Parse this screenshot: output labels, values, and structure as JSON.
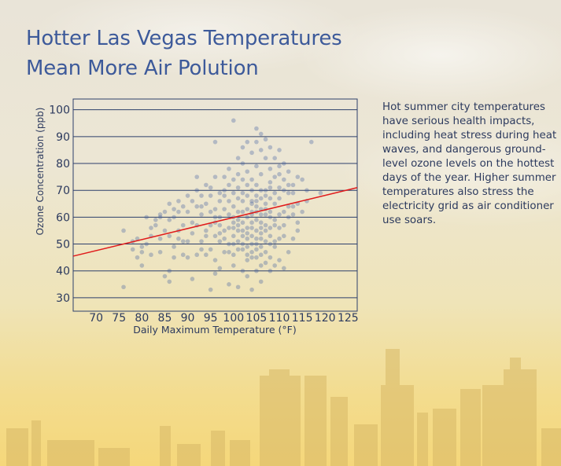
{
  "title_lines": [
    "Hotter Las Vegas Temperatures",
    "Mean More Air Polution"
  ],
  "description": "Hot summer city temperatures have serious health impacts, including heat stress during heat waves, and dangerous ground-level ozone levels on the hottest days of the year. Higher summer temperatures also stress the electricity grid as air conditioner use soars.",
  "colors": {
    "title": "#3d5a9a",
    "points": "#3a5a9e",
    "trend_line": "#e01b1b",
    "grid": "#2d3f6b",
    "skyline": "#d8b967"
  },
  "chart_data": {
    "type": "scatter",
    "xlabel": "Daily Maximum Temperature (°F)",
    "ylabel": "Ozone Concentration (ppb)",
    "xlim": [
      65,
      127
    ],
    "ylim": [
      25,
      104
    ],
    "x_ticks": [
      70,
      75,
      80,
      85,
      90,
      95,
      100,
      105,
      110,
      115,
      120,
      125
    ],
    "y_ticks": [
      30,
      40,
      50,
      60,
      70,
      80,
      90,
      100
    ],
    "grid": "horizontal",
    "trend_line": {
      "x": [
        65,
        127
      ],
      "y": [
        45.5,
        71
      ]
    },
    "points": [
      [
        76,
        34
      ],
      [
        78,
        48
      ],
      [
        79,
        45
      ],
      [
        80,
        42
      ],
      [
        82,
        46
      ],
      [
        84,
        47
      ],
      [
        84,
        52
      ],
      [
        85,
        38
      ],
      [
        86,
        40
      ],
      [
        86,
        36
      ],
      [
        87,
        45
      ],
      [
        88,
        55
      ],
      [
        89,
        46
      ],
      [
        90,
        51
      ],
      [
        91,
        37
      ],
      [
        92,
        57
      ],
      [
        93,
        48
      ],
      [
        94,
        53
      ],
      [
        95,
        33
      ],
      [
        96,
        58
      ],
      [
        76,
        55
      ],
      [
        79,
        52
      ],
      [
        81,
        60
      ],
      [
        83,
        59
      ],
      [
        84,
        61
      ],
      [
        86,
        53
      ],
      [
        87,
        60
      ],
      [
        88,
        62
      ],
      [
        89,
        51
      ],
      [
        90,
        62
      ],
      [
        91,
        58
      ],
      [
        92,
        64
      ],
      [
        93,
        61
      ],
      [
        94,
        55
      ],
      [
        95,
        57
      ],
      [
        96,
        53
      ],
      [
        97,
        60
      ],
      [
        98,
        55
      ],
      [
        99,
        56
      ],
      [
        100,
        58
      ],
      [
        80,
        49
      ],
      [
        82,
        56
      ],
      [
        85,
        55
      ],
      [
        86,
        59
      ],
      [
        87,
        49
      ],
      [
        88,
        52
      ],
      [
        89,
        57
      ],
      [
        90,
        45
      ],
      [
        91,
        54
      ],
      [
        92,
        46
      ],
      [
        93,
        51
      ],
      [
        94,
        46
      ],
      [
        95,
        48
      ],
      [
        96,
        44
      ],
      [
        97,
        51
      ],
      [
        98,
        47
      ],
      [
        99,
        50
      ],
      [
        100,
        46
      ],
      [
        101,
        51
      ],
      [
        102,
        53
      ],
      [
        94,
        65
      ],
      [
        95,
        68
      ],
      [
        96,
        63
      ],
      [
        97,
        66
      ],
      [
        98,
        70
      ],
      [
        99,
        72
      ],
      [
        100,
        64
      ],
      [
        101,
        67
      ],
      [
        102,
        69
      ],
      [
        103,
        72
      ],
      [
        104,
        66
      ],
      [
        105,
        68
      ],
      [
        106,
        63
      ],
      [
        107,
        70
      ],
      [
        108,
        73
      ],
      [
        109,
        65
      ],
      [
        110,
        67
      ],
      [
        111,
        62
      ],
      [
        112,
        60
      ],
      [
        113,
        64
      ],
      [
        95,
        62
      ],
      [
        96,
        60
      ],
      [
        97,
        57
      ],
      [
        98,
        63
      ],
      [
        99,
        61
      ],
      [
        100,
        60
      ],
      [
        101,
        62
      ],
      [
        102,
        58
      ],
      [
        103,
        60
      ],
      [
        104,
        62
      ],
      [
        105,
        64
      ],
      [
        106,
        58
      ],
      [
        107,
        61
      ],
      [
        108,
        62
      ],
      [
        109,
        59
      ],
      [
        110,
        61
      ],
      [
        111,
        57
      ],
      [
        112,
        64
      ],
      [
        113,
        61
      ],
      [
        114,
        58
      ],
      [
        97,
        54
      ],
      [
        98,
        52
      ],
      [
        99,
        47
      ],
      [
        100,
        53
      ],
      [
        101,
        55
      ],
      [
        102,
        48
      ],
      [
        103,
        54
      ],
      [
        104,
        50
      ],
      [
        105,
        55
      ],
      [
        106,
        52
      ],
      [
        107,
        51
      ],
      [
        108,
        53
      ],
      [
        109,
        49
      ],
      [
        110,
        52
      ],
      [
        111,
        53
      ],
      [
        112,
        47
      ],
      [
        113,
        52
      ],
      [
        114,
        55
      ],
      [
        100,
        42
      ],
      [
        103,
        44
      ],
      [
        104,
        45
      ],
      [
        105,
        40
      ],
      [
        106,
        46
      ],
      [
        107,
        43
      ],
      [
        108,
        45
      ],
      [
        109,
        42
      ],
      [
        110,
        44
      ],
      [
        111,
        41
      ],
      [
        103,
        38
      ],
      [
        106,
        36
      ],
      [
        101,
        34
      ],
      [
        104,
        33
      ],
      [
        99,
        35
      ],
      [
        102,
        40
      ],
      [
        105,
        48
      ],
      [
        107,
        47
      ],
      [
        106,
        42
      ],
      [
        108,
        40
      ],
      [
        97,
        41
      ],
      [
        96,
        39
      ],
      [
        98,
        75
      ],
      [
        99,
        78
      ],
      [
        100,
        74
      ],
      [
        101,
        76
      ],
      [
        102,
        80
      ],
      [
        103,
        77
      ],
      [
        104,
        74
      ],
      [
        105,
        79
      ],
      [
        106,
        76
      ],
      [
        107,
        82
      ],
      [
        108,
        78
      ],
      [
        109,
        75
      ],
      [
        110,
        79
      ],
      [
        111,
        74
      ],
      [
        112,
        77
      ],
      [
        113,
        72
      ],
      [
        114,
        75
      ],
      [
        104,
        84
      ],
      [
        105,
        88
      ],
      [
        106,
        85
      ],
      [
        107,
        89
      ],
      [
        108,
        86
      ],
      [
        103,
        88
      ],
      [
        105,
        93
      ],
      [
        106,
        91
      ],
      [
        100,
        96
      ],
      [
        96,
        88
      ],
      [
        101,
        82
      ],
      [
        102,
        86
      ],
      [
        109,
        82
      ],
      [
        110,
        85
      ],
      [
        111,
        80
      ],
      [
        117,
        88
      ],
      [
        115,
        74
      ],
      [
        116,
        70
      ],
      [
        119,
        69
      ],
      [
        114,
        65
      ],
      [
        116,
        66
      ],
      [
        112,
        69
      ],
      [
        115,
        62
      ],
      [
        103,
        56
      ],
      [
        104,
        58
      ],
      [
        105,
        59
      ],
      [
        106,
        56
      ],
      [
        107,
        57
      ],
      [
        108,
        56
      ],
      [
        109,
        57
      ],
      [
        110,
        56
      ],
      [
        104,
        61
      ],
      [
        105,
        62
      ],
      [
        106,
        61
      ],
      [
        107,
        63
      ],
      [
        108,
        60
      ],
      [
        103,
        63
      ],
      [
        102,
        62
      ],
      [
        101,
        59
      ],
      [
        104,
        65
      ],
      [
        105,
        66
      ],
      [
        106,
        67
      ],
      [
        107,
        65
      ],
      [
        100,
        56
      ],
      [
        101,
        57
      ],
      [
        102,
        55
      ],
      [
        103,
        52
      ],
      [
        104,
        53
      ],
      [
        105,
        52
      ],
      [
        106,
        54
      ],
      [
        107,
        55
      ],
      [
        108,
        50
      ],
      [
        109,
        51
      ],
      [
        104,
        56
      ],
      [
        103,
        49
      ],
      [
        105,
        50
      ],
      [
        106,
        49
      ],
      [
        102,
        50
      ],
      [
        101,
        48
      ],
      [
        100,
        50
      ],
      [
        104,
        47
      ],
      [
        103,
        46
      ],
      [
        105,
        45
      ],
      [
        92,
        70
      ],
      [
        93,
        68
      ],
      [
        94,
        72
      ],
      [
        93,
        64
      ],
      [
        91,
        66
      ],
      [
        90,
        68
      ],
      [
        89,
        64
      ],
      [
        88,
        66
      ],
      [
        87,
        63
      ],
      [
        86,
        65
      ],
      [
        85,
        62
      ],
      [
        84,
        60
      ],
      [
        83,
        57
      ],
      [
        82,
        53
      ],
      [
        81,
        50
      ],
      [
        80,
        47
      ],
      [
        78,
        51
      ],
      [
        92,
        75
      ],
      [
        96,
        75
      ],
      [
        95,
        71
      ],
      [
        98,
        68
      ],
      [
        97,
        69
      ],
      [
        99,
        66
      ],
      [
        100,
        69
      ],
      [
        101,
        71
      ],
      [
        102,
        66
      ],
      [
        103,
        68
      ],
      [
        104,
        70
      ],
      [
        105,
        72
      ],
      [
        106,
        70
      ],
      [
        107,
        68
      ],
      [
        108,
        67
      ],
      [
        109,
        69
      ],
      [
        110,
        71
      ],
      [
        111,
        70
      ],
      [
        112,
        72
      ],
      [
        113,
        69
      ],
      [
        110,
        76
      ],
      [
        108,
        71
      ],
      [
        102,
        74
      ]
    ]
  }
}
